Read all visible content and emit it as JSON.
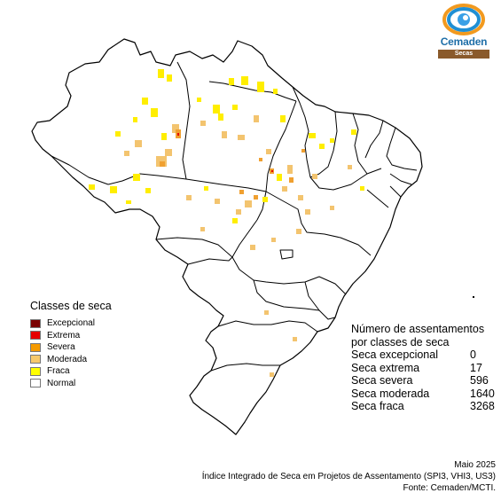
{
  "logo": {
    "name": "Cemaden",
    "subtitle": "Secas"
  },
  "legend": {
    "title": "Classes de seca",
    "items": [
      {
        "label": "Excepcional",
        "color": "#7a0000"
      },
      {
        "label": "Extrema",
        "color": "#e60000"
      },
      {
        "label": "Severa",
        "color": "#f59a00"
      },
      {
        "label": "Moderada",
        "color": "#f7c96b"
      },
      {
        "label": "Fraca",
        "color": "#ffff00"
      },
      {
        "label": "Normal",
        "color": "#ffffff"
      }
    ]
  },
  "counts": {
    "title": "Número de assentamentos por classes de seca",
    "rows": [
      {
        "label": "Seca excepcional",
        "value": "0"
      },
      {
        "label": "Seca extrema",
        "value": "17"
      },
      {
        "label": "Seca severa",
        "value": "596"
      },
      {
        "label": "Seca moderada",
        "value": "1640"
      },
      {
        "label": "Seca fraca",
        "value": "3268"
      }
    ]
  },
  "footer": {
    "date": "Maio 2025",
    "index": "Índice Integrado de Seca em Projetos de Assentamento (SPI3, VHI3, US3)",
    "source": "Fonte: Cemaden/MCTI."
  },
  "colors": {
    "fraca": "#ffee00",
    "moderada": "#f3c46f",
    "severa": "#f0a030",
    "border": "#000000"
  }
}
